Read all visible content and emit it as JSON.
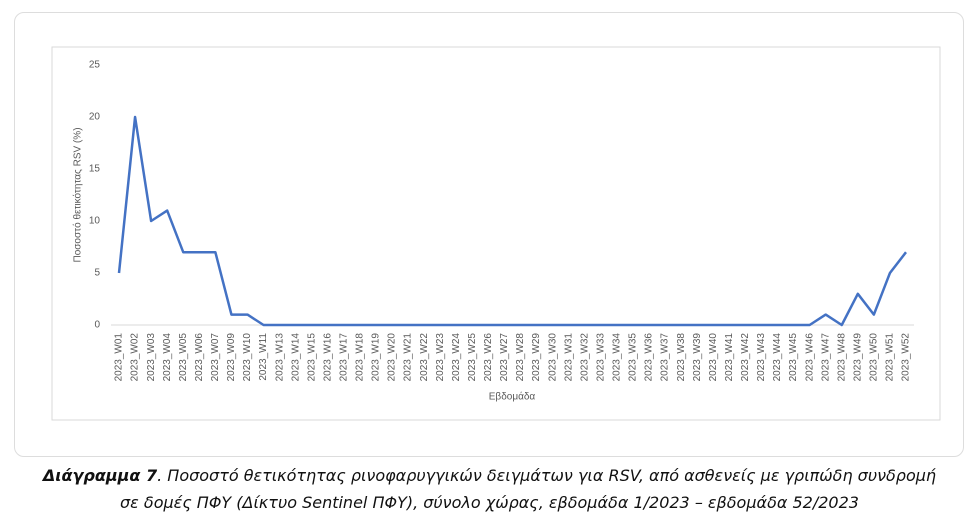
{
  "chart_data": {
    "type": "line",
    "y_label": "Ποσοστό θετικότητας RSV (%)",
    "x_label": "Εβδομάδα",
    "categories": [
      "2023_W01",
      "2023_W02",
      "2023_W03",
      "2023_W04",
      "2023_W05",
      "2023_W06",
      "2023_W07",
      "2023_W09",
      "2023_W10",
      "2023_W11",
      "2023_W13",
      "2023_W14",
      "2023_W15",
      "2023_W16",
      "2023_W17",
      "2023_W18",
      "2023_W19",
      "2023_W20",
      "2023_W21",
      "2023_W22",
      "2023_W23",
      "2023_W24",
      "2023_W25",
      "2023_W26",
      "2023_W27",
      "2023_W28",
      "2023_W29",
      "2023_W30",
      "2023_W31",
      "2023_W32",
      "2023_W33",
      "2023_W34",
      "2023_W35",
      "2023_W36",
      "2023_W37",
      "2023_W38",
      "2023_W39",
      "2023_W40",
      "2023_W41",
      "2023_W42",
      "2023_W43",
      "2023_W44",
      "2023_W45",
      "2023_W46",
      "2023_W47",
      "2023_W48",
      "2023_W49",
      "2023_W50",
      "2023_W51",
      "2023_W52"
    ],
    "values": [
      5,
      20,
      10,
      11,
      7,
      7,
      7,
      1,
      1,
      0,
      0,
      0,
      0,
      0,
      0,
      0,
      0,
      0,
      0,
      0,
      0,
      0,
      0,
      0,
      0,
      0,
      0,
      0,
      0,
      0,
      0,
      0,
      0,
      0,
      0,
      0,
      0,
      0,
      0,
      0,
      0,
      0,
      0,
      0,
      1,
      0,
      3,
      1,
      5,
      7
    ],
    "color": "#4472c4",
    "ylim": [
      0,
      25
    ],
    "yticks": [
      0,
      5,
      10,
      15,
      20,
      25
    ],
    "grid": false
  },
  "caption": {
    "label": "Διάγραμμα 7",
    "lines": [
      ". Ποσοστό θετικότητας ρινοφαρυγγικών δειγμάτων για RSV, από ασθενείς με γριπώδη συνδρομή",
      "σε δομές ΠΦΥ (Δίκτυο Sentinel ΠΦΥ), σύνολο χώρας, εβδομάδα 1/2023 – εβδομάδα 52/2023"
    ]
  }
}
